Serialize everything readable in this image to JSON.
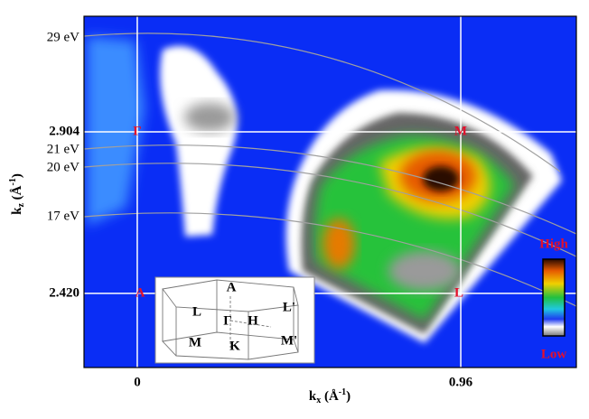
{
  "chart_data": {
    "type": "heatmap",
    "xlabel": [
      "k",
      "x",
      " (Å",
      "-1",
      ")"
    ],
    "ylabel": [
      "k",
      "z",
      " (Å",
      "-1",
      ")"
    ],
    "xlim": [
      -0.158,
      1.303
    ],
    "ylim": [
      2.198,
      3.25
    ],
    "xticks": [
      0,
      0.96
    ],
    "yticks": [
      {
        "value": 2.42,
        "label": "2.420"
      },
      2.904
    ],
    "grid": true,
    "annotations": [
      "29 eV",
      "21 eV",
      "20 eV",
      "17 eV"
    ],
    "points": [
      "Γ",
      "M",
      "A",
      "L"
    ],
    "colorbar": {
      "high": "High",
      "low": "Low"
    },
    "inset": {
      "labels": [
        "A",
        "L",
        "Γ",
        "H",
        "L'",
        "M",
        "K",
        "M'"
      ]
    }
  }
}
